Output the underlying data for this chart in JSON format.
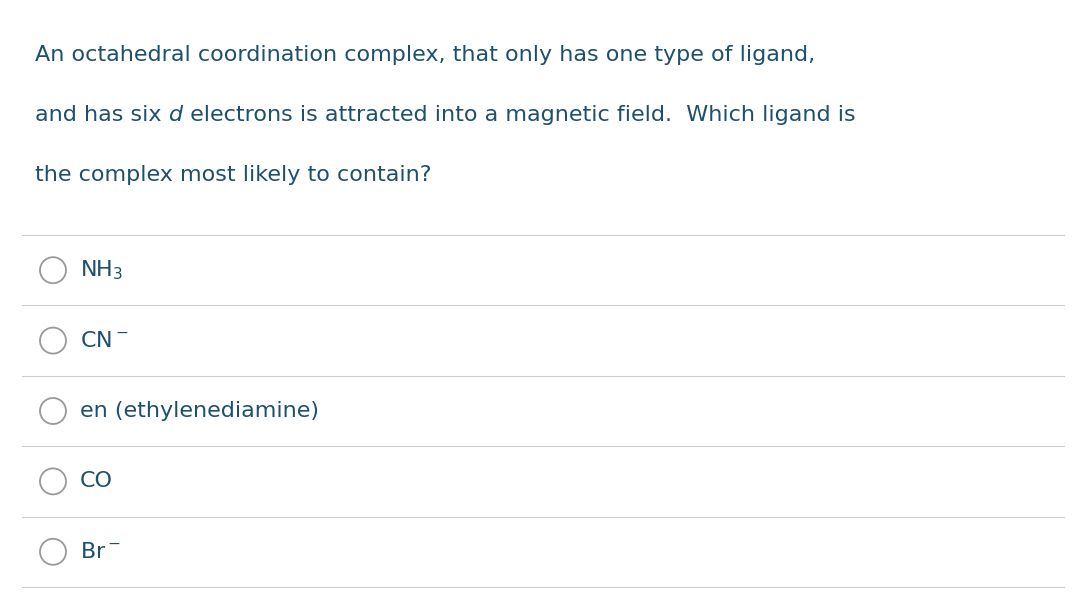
{
  "background_color": "#ffffff",
  "question_line1": "An octahedral coordination complex, that only has one type of ligand,",
  "question_line2_pre": "and has six ",
  "question_line2_italic": "d",
  "question_line2_post": " electrons is attracted into a magnetic field.  Which ligand is",
  "question_line3": "the complex most likely to contain?",
  "option_labels": [
    "NH$_3$",
    "CN$^-$",
    "en (ethylenediamine)",
    "CO",
    "Br$^-$"
  ],
  "text_color": "#1d4f6e",
  "line_color": "#cccccc",
  "circle_color": "#999999",
  "question_fontsize": 16,
  "option_fontsize": 16,
  "figwidth": 10.86,
  "figheight": 5.92,
  "dpi": 100
}
